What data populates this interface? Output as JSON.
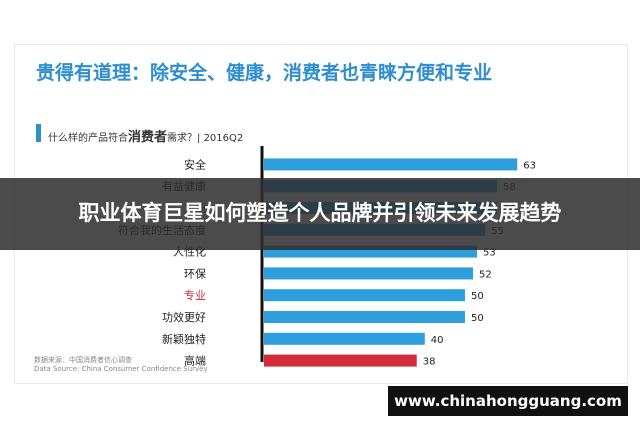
{
  "headline": "贵得有道理：除安全、健康，消费者也青睐方便和专业",
  "question": {
    "prefix": "什么样的产品符合",
    "emphasis": "消费者",
    "suffix": "需求？| 2016Q2"
  },
  "source": {
    "line1": "数据来源：中国消费者信心调查",
    "line2": "Data Source: China Consumer Confidence Survey"
  },
  "overlay_title": "职业体育巨星如何塑造个人品牌并引领未来发展趋势",
  "watermark": "www.chinahongguang.com",
  "colors": {
    "accent": "#2e8ecf",
    "bar_blue": "#2e9fdc",
    "bar_red": "#d42b3a",
    "label_red": "#d42b3a"
  },
  "chart_data": {
    "type": "bar",
    "orientation": "horizontal",
    "categories": [
      "安全",
      "有益健康",
      "方便",
      "符合我的生活态度",
      "人性化",
      "环保",
      "专业",
      "功效更好",
      "新颖独特",
      "高端"
    ],
    "values": [
      63,
      58,
      58,
      55,
      53,
      52,
      50,
      50,
      40,
      38
    ],
    "highlight_labels": [
      "方便",
      "专业"
    ],
    "highlight_bars": [
      "高端"
    ],
    "xlim": [
      0,
      70
    ],
    "grid": false,
    "data_labels": true
  }
}
